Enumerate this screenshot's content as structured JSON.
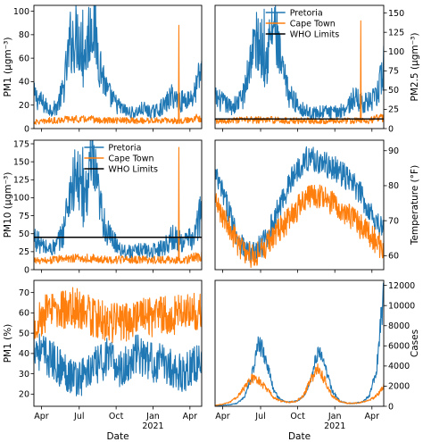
{
  "colors": {
    "pretoria": "#1f77b4",
    "cape_town": "#ff7f0e",
    "who": "#000000"
  },
  "chart_data": [
    {
      "type": "line",
      "panel": "top-left",
      "ylabel": "PM1 (µgm⁻³)",
      "ylim": [
        0,
        105
      ],
      "yticks": [
        0,
        20,
        40,
        60,
        80,
        100
      ],
      "y_axis_side": "left",
      "series": [
        {
          "name": "Pretoria",
          "key": "pretoria",
          "values": [
            25,
            20,
            15,
            15,
            28,
            65,
            70,
            55,
            85,
            50,
            28,
            20,
            15,
            12,
            12,
            15,
            12,
            14,
            18,
            25,
            20,
            22,
            25,
            45
          ]
        },
        {
          "name": "Cape Town",
          "key": "cape_town",
          "values": [
            5,
            5,
            6,
            6,
            7,
            7,
            7,
            7,
            7,
            6,
            6,
            6,
            6,
            6,
            6,
            6,
            6,
            6,
            6,
            6,
            6,
            6,
            8,
            8
          ]
        }
      ],
      "spikes": [
        {
          "key": "pretoria",
          "x": 0.29,
          "value": 101
        },
        {
          "key": "cape_town",
          "x": 0.865,
          "value": 88
        }
      ],
      "legend": false
    },
    {
      "type": "line",
      "panel": "top-right",
      "ylabel": "PM2.5 (µgm⁻³)",
      "ylim": [
        0,
        160
      ],
      "yticks": [
        0,
        25,
        50,
        75,
        100,
        125,
        150
      ],
      "y_axis_side": "right",
      "series": [
        {
          "name": "Pretoria",
          "key": "pretoria",
          "values": [
            35,
            30,
            25,
            28,
            40,
            90,
            100,
            80,
            120,
            70,
            40,
            30,
            22,
            18,
            18,
            20,
            18,
            20,
            25,
            35,
            30,
            30,
            35,
            70
          ]
        },
        {
          "name": "Cape Town",
          "key": "cape_town",
          "values": [
            8,
            8,
            9,
            9,
            10,
            10,
            10,
            10,
            10,
            9,
            9,
            9,
            9,
            9,
            9,
            9,
            9,
            9,
            9,
            9,
            9,
            9,
            12,
            12
          ]
        }
      ],
      "spikes": [
        {
          "key": "pretoria",
          "x": 0.29,
          "value": 155
        },
        {
          "key": "cape_town",
          "x": 0.865,
          "value": 140
        }
      ],
      "who_limit": 12.5,
      "legend": true,
      "legend_position": "top-center",
      "legend_entries": [
        "Pretoria",
        "Cape Town",
        "WHO Limits"
      ]
    },
    {
      "type": "line",
      "panel": "middle-left",
      "ylabel": "PM10 (µgm⁻³)",
      "ylim": [
        0,
        180
      ],
      "yticks": [
        0,
        25,
        50,
        75,
        100,
        125,
        150,
        175
      ],
      "y_axis_side": "left",
      "series": [
        {
          "name": "Pretoria",
          "key": "pretoria",
          "values": [
            40,
            30,
            25,
            28,
            45,
            100,
            110,
            90,
            130,
            80,
            45,
            35,
            25,
            22,
            22,
            25,
            22,
            25,
            30,
            40,
            35,
            35,
            40,
            75
          ]
        },
        {
          "name": "Cape Town",
          "key": "cape_town",
          "values": [
            12,
            10,
            12,
            12,
            14,
            14,
            14,
            14,
            14,
            12,
            12,
            12,
            12,
            12,
            12,
            12,
            12,
            12,
            12,
            12,
            12,
            12,
            15,
            16
          ]
        }
      ],
      "spikes": [
        {
          "key": "pretoria",
          "x": 0.29,
          "value": 170
        },
        {
          "key": "cape_town",
          "x": 0.865,
          "value": 170
        }
      ],
      "who_limit": 45,
      "legend": true,
      "legend_position": "top-center",
      "legend_entries": [
        "Pretoria",
        "Cape Town",
        "WHO Limits"
      ]
    },
    {
      "type": "line",
      "panel": "middle-right",
      "ylabel": "Temperature (°F)",
      "ylim": [
        56,
        93
      ],
      "yticks": [
        60,
        70,
        80,
        90
      ],
      "y_axis_side": "right",
      "series": [
        {
          "name": "Pretoria",
          "key": "pretoria",
          "values": [
            83,
            78,
            72,
            66,
            62,
            60,
            62,
            65,
            70,
            75,
            80,
            84,
            87,
            88,
            87,
            86,
            85,
            84,
            82,
            80,
            77,
            73,
            70,
            67
          ]
        },
        {
          "name": "Cape Town",
          "key": "cape_town",
          "values": [
            75,
            72,
            68,
            64,
            61,
            60,
            61,
            63,
            66,
            68,
            70,
            73,
            75,
            77,
            77,
            76,
            75,
            74,
            72,
            70,
            68,
            66,
            64,
            62
          ]
        }
      ],
      "legend": false
    },
    {
      "type": "line",
      "panel": "bottom-left",
      "ylabel": "PM1 (%)",
      "ylim": [
        14,
        76
      ],
      "yticks": [
        20,
        30,
        40,
        50,
        60,
        70
      ],
      "y_axis_side": "left",
      "series": [
        {
          "name": "Pretoria",
          "key": "pretoria",
          "values": [
            45,
            40,
            38,
            35,
            32,
            30,
            28,
            30,
            32,
            35,
            38,
            35,
            32,
            35,
            40,
            38,
            36,
            35,
            35,
            33,
            30,
            32,
            35,
            35
          ]
        },
        {
          "name": "Cape Town",
          "key": "cape_town",
          "values": [
            55,
            58,
            60,
            62,
            62,
            63,
            62,
            60,
            58,
            57,
            55,
            55,
            55,
            56,
            57,
            58,
            58,
            58,
            60,
            58,
            60,
            60,
            60,
            62
          ]
        }
      ],
      "legend": false
    },
    {
      "type": "line",
      "panel": "bottom-right",
      "ylabel": "Cases",
      "ylim": [
        0,
        12500
      ],
      "yticks": [
        0,
        2000,
        4000,
        6000,
        8000,
        10000,
        12000
      ],
      "y_axis_side": "right",
      "series": [
        {
          "name": "Pretoria",
          "key": "pretoria",
          "values": [
            50,
            100,
            150,
            300,
            900,
            3000,
            6400,
            4500,
            1500,
            600,
            400,
            500,
            900,
            2500,
            5500,
            4000,
            1500,
            500,
            300,
            300,
            400,
            1000,
            3500,
            11500
          ]
        },
        {
          "name": "Cape Town",
          "key": "cape_town",
          "values": [
            100,
            200,
            400,
            900,
            1800,
            2800,
            2500,
            1800,
            900,
            500,
            400,
            500,
            1000,
            2500,
            3800,
            2500,
            1000,
            500,
            300,
            300,
            400,
            600,
            1000,
            2000
          ]
        }
      ],
      "legend": false
    }
  ],
  "x_axis": {
    "xlabel": "Date",
    "tick_labels": [
      "Apr",
      "Jul",
      "Oct",
      "Jan",
      "Apr"
    ],
    "year_label": "2021",
    "year_under_tick": 3
  }
}
